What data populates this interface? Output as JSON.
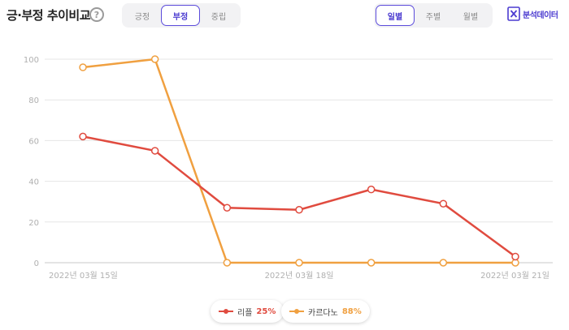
{
  "header": {
    "title": "긍·부정 추이비교",
    "help_icon": "?"
  },
  "sentiment_tabs": [
    {
      "label": "긍정",
      "active": false
    },
    {
      "label": "부정",
      "active": true
    },
    {
      "label": "중립",
      "active": false
    }
  ],
  "period_tabs": [
    {
      "label": "일별",
      "active": true
    },
    {
      "label": "주별",
      "active": false
    },
    {
      "label": "월별",
      "active": false
    }
  ],
  "export": {
    "label": "분석데이터",
    "icon": "excel-icon"
  },
  "colors": {
    "accent": "#4b3bd0",
    "ripple": "#e04b3f",
    "cardano": "#f0a040",
    "grid": "#e6e6e6",
    "axis_text": "#b0b0b0"
  },
  "chart_data": {
    "type": "line",
    "x": [
      "2022-03-15",
      "2022-03-16",
      "2022-03-17",
      "2022-03-18",
      "2022-03-19",
      "2022-03-20",
      "2022-03-21"
    ],
    "x_tick_labels": [
      "2022년 03월 15일",
      "2022년 03월 18일",
      "2022년 03월 21일"
    ],
    "y_ticks": [
      0,
      20,
      40,
      60,
      80,
      100
    ],
    "ylim": [
      0,
      100
    ],
    "grid": true,
    "legend_position": "bottom",
    "series": [
      {
        "name": "리플",
        "share": "25%",
        "color": "#e04b3f",
        "values": [
          62,
          55,
          27,
          26,
          36,
          29,
          3
        ]
      },
      {
        "name": "카르다노",
        "share": "88%",
        "color": "#f0a040",
        "values": [
          96,
          100,
          0,
          0,
          0,
          0,
          0
        ]
      }
    ]
  }
}
